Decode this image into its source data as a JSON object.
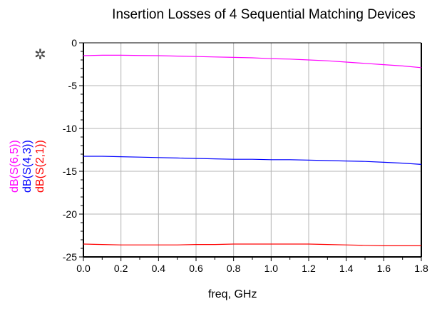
{
  "chart_data": {
    "type": "line",
    "title": "Insertion Losses of 4 Sequential Matching Devices",
    "xlabel": "freq, GHz",
    "xlim": [
      0.0,
      1.8
    ],
    "ylim": [
      -25,
      0
    ],
    "xticks": [
      "0.0",
      "0.2",
      "0.4",
      "0.6",
      "0.8",
      "1.0",
      "1.2",
      "1.4",
      "1.6",
      "1.8"
    ],
    "yticks": [
      "0",
      "-5",
      "-10",
      "-15",
      "-20",
      "-25"
    ],
    "grid": true,
    "x": [
      0.0,
      0.1,
      0.2,
      0.3,
      0.4,
      0.5,
      0.6,
      0.7,
      0.8,
      0.9,
      1.0,
      1.1,
      1.2,
      1.3,
      1.4,
      1.5,
      1.6,
      1.7,
      1.8
    ],
    "series": [
      {
        "name": "dB(S(6,5))",
        "color": "#ff00ff",
        "values": [
          -1.5,
          -1.45,
          -1.45,
          -1.48,
          -1.5,
          -1.55,
          -1.6,
          -1.65,
          -1.7,
          -1.75,
          -1.85,
          -1.9,
          -2.0,
          -2.1,
          -2.25,
          -2.4,
          -2.55,
          -2.7,
          -2.9
        ]
      },
      {
        "name": "dB(S(4,3))",
        "color": "#0000ff",
        "values": [
          -13.25,
          -13.25,
          -13.3,
          -13.35,
          -13.4,
          -13.45,
          -13.5,
          -13.55,
          -13.6,
          -13.6,
          -13.65,
          -13.65,
          -13.7,
          -13.75,
          -13.8,
          -13.85,
          -13.95,
          -14.05,
          -14.2
        ]
      },
      {
        "name": "dB(S(2,1))",
        "color": "#ff0000",
        "values": [
          -23.5,
          -23.55,
          -23.6,
          -23.6,
          -23.6,
          -23.6,
          -23.55,
          -23.55,
          -23.5,
          -23.5,
          -23.5,
          -23.5,
          -23.5,
          -23.55,
          -23.6,
          -23.65,
          -23.7,
          -23.7,
          -23.7
        ]
      }
    ]
  }
}
